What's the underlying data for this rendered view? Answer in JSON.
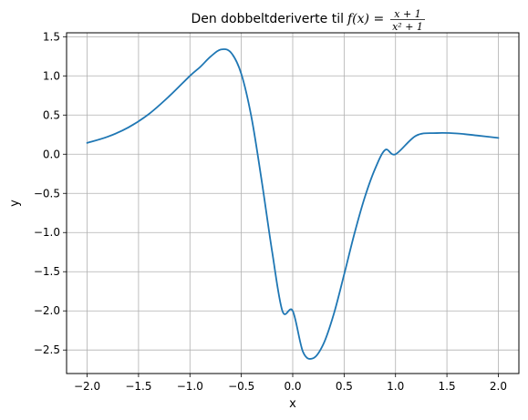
{
  "chart_data": {
    "type": "line",
    "title": "Den dobbeltderiverte til",
    "title_formula": {
      "lhs": "f(x) =",
      "numerator": "x + 1",
      "denominator": "x² + 1"
    },
    "xlabel": "x",
    "ylabel": "y",
    "xlim": [
      -2.2,
      2.2
    ],
    "ylim": [
      -2.8,
      1.55
    ],
    "grid": true,
    "x_ticks": [
      -2.0,
      -1.5,
      -1.0,
      -0.5,
      0.0,
      0.5,
      1.0,
      1.5,
      2.0
    ],
    "x_tick_labels": [
      "−2.0",
      "−1.5",
      "−1.0",
      "−0.5",
      "0.0",
      "0.5",
      "1.0",
      "1.5",
      "2.0"
    ],
    "y_ticks": [
      1.5,
      1.0,
      0.5,
      0.0,
      -0.5,
      -1.0,
      -1.5,
      -2.0,
      -2.5
    ],
    "y_tick_labels": [
      "1.5",
      "1.0",
      "0.5",
      "0.0",
      "−0.5",
      "−1.0",
      "−1.5",
      "−2.0",
      "−2.5"
    ],
    "series": [
      {
        "color": "#1f77b4",
        "x": [
          -2.0,
          -1.8,
          -1.6,
          -1.4,
          -1.2,
          -1.0,
          -0.9,
          -0.8,
          -0.7,
          -0.6,
          -0.5,
          -0.4,
          -0.3,
          -0.2,
          -0.1,
          0.0,
          0.1,
          0.2,
          0.3,
          0.4,
          0.5,
          0.6,
          0.7,
          0.8,
          0.9,
          1.0,
          1.2,
          1.4,
          1.6,
          1.8,
          2.0
        ],
        "y": [
          0.144,
          0.223,
          0.341,
          0.512,
          0.742,
          1.0,
          1.114,
          1.245,
          1.336,
          1.296,
          1.024,
          0.462,
          -0.356,
          -1.246,
          -2.003,
          -2.0,
          -2.524,
          -2.604,
          -2.419,
          -2.038,
          -1.536,
          -1.015,
          -0.554,
          -0.19,
          0.055,
          0.0,
          0.237,
          0.27,
          0.265,
          0.238,
          0.208
        ]
      }
    ]
  }
}
